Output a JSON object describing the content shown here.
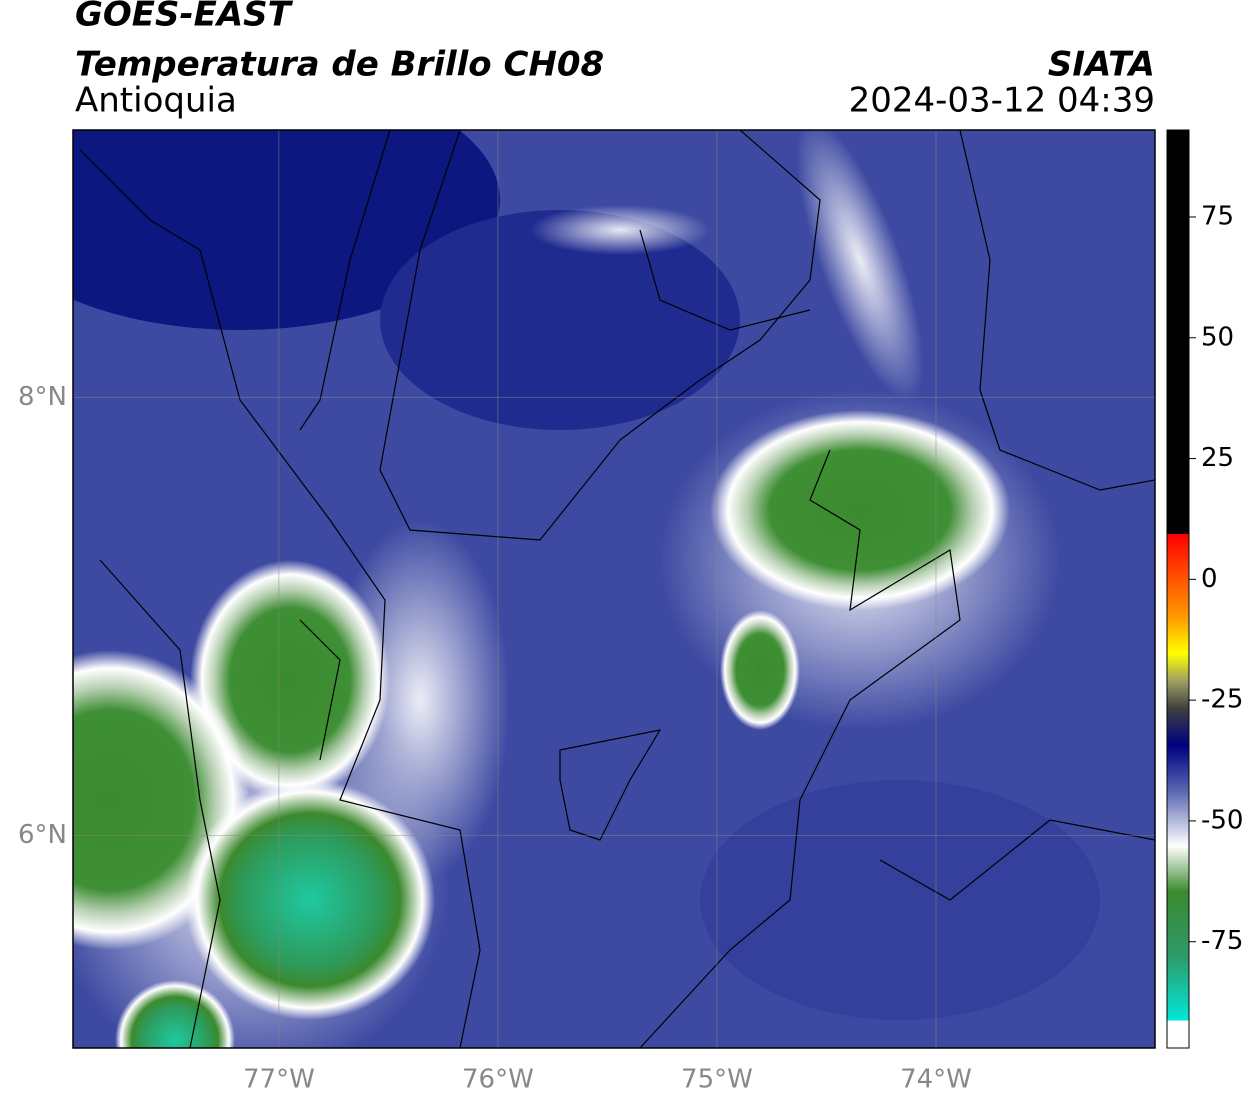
{
  "header": {
    "title": "GOES-EAST",
    "subtitle": "Temperatura de Brillo CH08",
    "region": "Antioquia",
    "source": "SIATA",
    "datetime": "2024-03-12 04:39"
  },
  "map": {
    "xlim": [
      -77.94,
      -73.0
    ],
    "ylim": [
      5.03,
      9.22
    ],
    "xticks": [
      {
        "value": -77,
        "label": "77°W"
      },
      {
        "value": -76,
        "label": "76°W"
      },
      {
        "value": -75,
        "label": "75°W"
      },
      {
        "value": -74,
        "label": "74°W"
      }
    ],
    "yticks": [
      {
        "value": 8,
        "label": "8°N"
      },
      {
        "value": 6,
        "label": "6°N"
      }
    ],
    "grid": true
  },
  "colorbar": {
    "lim": [
      -97,
      93
    ],
    "ticks": [
      75,
      50,
      25,
      0,
      -25,
      -50,
      -75
    ]
  }
}
